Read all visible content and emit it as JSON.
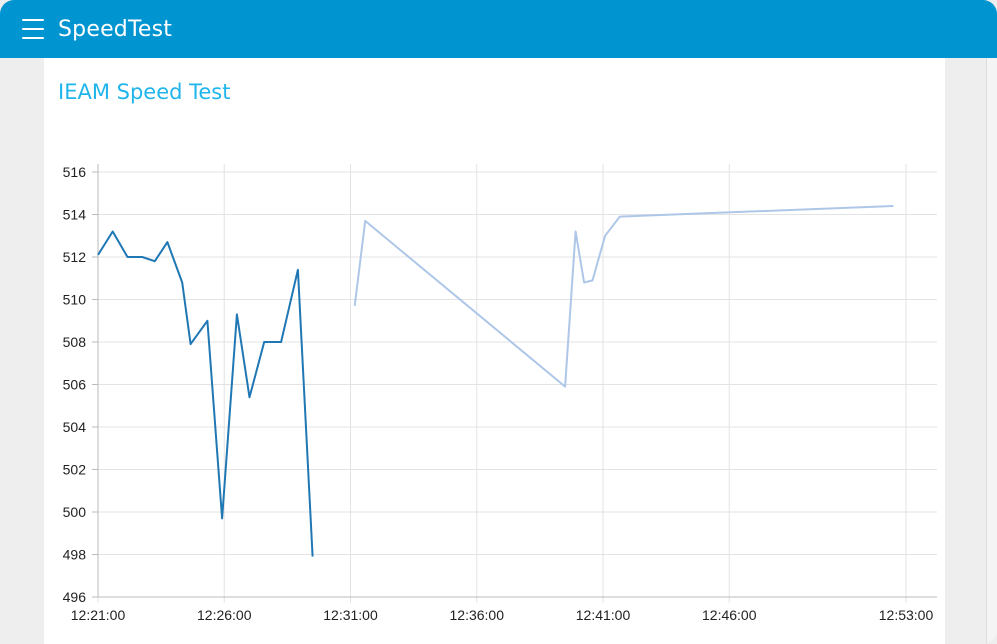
{
  "header": {
    "title": "SpeedTest",
    "menu_icon": "hamburger-menu-icon"
  },
  "card": {
    "title": "IEAM Speed Test"
  },
  "colors": {
    "header_bg": "#0095d0",
    "title_text": "#1fb5ec",
    "series_dark": "#1f77b4",
    "series_light": "#aec7e8"
  },
  "chart_data": {
    "type": "line",
    "title": "",
    "xlabel": "",
    "ylabel": "",
    "ylim": [
      496,
      516
    ],
    "xlim": [
      "12:21:00",
      "12:53:00"
    ],
    "grid": true,
    "x_ticks": [
      "12:21:00",
      "12:26:00",
      "12:31:00",
      "12:36:00",
      "12:41:00",
      "12:46:00",
      "12:53:00"
    ],
    "y_ticks": [
      496,
      498,
      500,
      502,
      504,
      506,
      508,
      510,
      512,
      514,
      516
    ],
    "series": [
      {
        "color": "#1f77b4",
        "points": [
          [
            "12:21:00",
            512.1
          ],
          [
            "12:21:35",
            513.2
          ],
          [
            "12:22:10",
            512.0
          ],
          [
            "12:22:45",
            512.0
          ],
          [
            "12:23:15",
            511.8
          ],
          [
            "12:23:45",
            512.7
          ],
          [
            "12:24:20",
            510.8
          ],
          [
            "12:24:40",
            507.9
          ],
          [
            "12:25:20",
            509.0
          ],
          [
            "12:25:55",
            499.7
          ],
          [
            "12:26:30",
            509.3
          ],
          [
            "12:27:00",
            505.4
          ],
          [
            "12:27:35",
            508.0
          ],
          [
            "12:28:15",
            508.0
          ],
          [
            "12:28:55",
            511.4
          ],
          [
            "12:29:30",
            497.9
          ]
        ]
      },
      {
        "color": "#aec7e8",
        "points": [
          [
            "12:31:10",
            509.7
          ],
          [
            "12:31:35",
            513.7
          ],
          [
            "12:39:30",
            505.9
          ],
          [
            "12:39:55",
            513.2
          ],
          [
            "12:40:15",
            510.8
          ],
          [
            "12:40:35",
            510.9
          ],
          [
            "12:41:05",
            513.0
          ],
          [
            "12:41:40",
            513.9
          ],
          [
            "12:52:30",
            514.4
          ]
        ]
      }
    ]
  }
}
